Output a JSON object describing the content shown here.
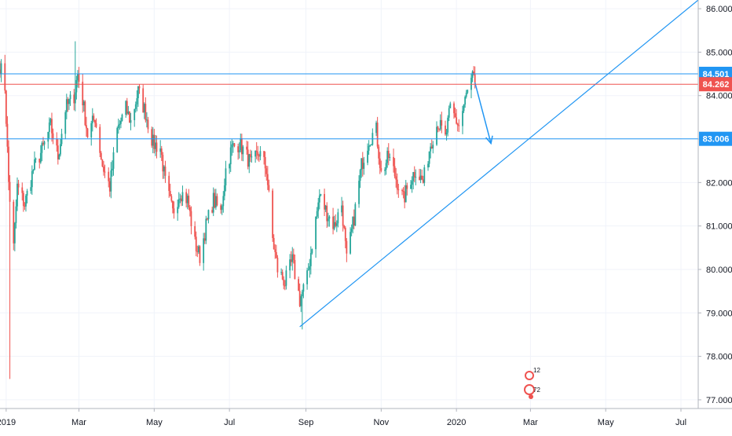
{
  "chart_data": {
    "type": "candlestick",
    "title": "",
    "xlabel": "",
    "ylabel": "",
    "ylim": [
      76.8,
      86.2
    ],
    "y_ticks": [
      "77.000",
      "78.000",
      "79.000",
      "80.000",
      "81.000",
      "82.000",
      "83.000",
      "84.000",
      "85.000",
      "86.000"
    ],
    "x_ticks": [
      {
        "label": "2019",
        "date": "2019-01-01"
      },
      {
        "label": "Mar",
        "date": "2019-03-01"
      },
      {
        "label": "May",
        "date": "2019-05-01"
      },
      {
        "label": "Jul",
        "date": "2019-07-01"
      },
      {
        "label": "Sep",
        "date": "2019-09-01"
      },
      {
        "label": "Nov",
        "date": "2019-11-01"
      },
      {
        "label": "2020",
        "date": "2020-01-01"
      },
      {
        "label": "Mar",
        "date": "2020-03-01"
      },
      {
        "label": "May",
        "date": "2020-05-01"
      },
      {
        "label": "Jul",
        "date": "2020-07-01"
      }
    ],
    "xlim": [
      "2018-12-27",
      "2020-07-15"
    ],
    "close_path": [
      [
        "2018-12-27",
        84.7
      ],
      [
        "2018-12-31",
        84.2
      ],
      [
        "2019-01-03",
        82.0
      ],
      [
        "2019-01-07",
        80.5
      ],
      [
        "2019-01-10",
        81.9
      ],
      [
        "2019-01-16",
        81.5
      ],
      [
        "2019-01-23",
        82.3
      ],
      [
        "2019-01-31",
        82.8
      ],
      [
        "2019-02-06",
        83.3
      ],
      [
        "2019-02-12",
        82.6
      ],
      [
        "2019-02-18",
        83.7
      ],
      [
        "2019-02-25",
        84.0
      ],
      [
        "2019-02-28",
        84.5
      ],
      [
        "2019-03-04",
        83.9
      ],
      [
        "2019-03-08",
        83.1
      ],
      [
        "2019-03-14",
        83.5
      ],
      [
        "2019-03-20",
        82.4
      ],
      [
        "2019-03-26",
        81.9
      ],
      [
        "2019-04-01",
        83.2
      ],
      [
        "2019-04-08",
        83.7
      ],
      [
        "2019-04-12",
        83.4
      ],
      [
        "2019-04-18",
        84.1
      ],
      [
        "2019-04-24",
        83.6
      ],
      [
        "2019-04-30",
        82.9
      ],
      [
        "2019-05-06",
        82.8
      ],
      [
        "2019-05-10",
        82.0
      ],
      [
        "2019-05-16",
        81.3
      ],
      [
        "2019-05-22",
        81.8
      ],
      [
        "2019-05-28",
        81.6
      ],
      [
        "2019-06-03",
        80.6
      ],
      [
        "2019-06-07",
        80.3
      ],
      [
        "2019-06-12",
        81.0
      ],
      [
        "2019-06-18",
        81.6
      ],
      [
        "2019-06-24",
        81.3
      ],
      [
        "2019-06-28",
        82.3
      ],
      [
        "2019-07-03",
        82.8
      ],
      [
        "2019-07-09",
        82.9
      ],
      [
        "2019-07-15",
        82.6
      ],
      [
        "2019-07-19",
        82.4
      ],
      [
        "2019-07-25",
        82.7
      ],
      [
        "2019-07-31",
        82.3
      ],
      [
        "2019-08-05",
        80.7
      ],
      [
        "2019-08-09",
        80.0
      ],
      [
        "2019-08-15",
        79.7
      ],
      [
        "2019-08-21",
        80.2
      ],
      [
        "2019-08-27",
        79.3
      ],
      [
        "2019-09-02",
        79.8
      ],
      [
        "2019-09-06",
        80.6
      ],
      [
        "2019-09-12",
        81.7
      ],
      [
        "2019-09-18",
        81.3
      ],
      [
        "2019-09-24",
        81.0
      ],
      [
        "2019-09-30",
        81.5
      ],
      [
        "2019-10-04",
        80.2
      ],
      [
        "2019-10-10",
        81.2
      ],
      [
        "2019-10-16",
        82.4
      ],
      [
        "2019-10-22",
        83.0
      ],
      [
        "2019-10-28",
        83.2
      ],
      [
        "2019-11-01",
        82.2
      ],
      [
        "2019-11-07",
        82.6
      ],
      [
        "2019-11-13",
        82.1
      ],
      [
        "2019-11-19",
        81.6
      ],
      [
        "2019-11-25",
        82.1
      ],
      [
        "2019-11-29",
        82.3
      ],
      [
        "2019-12-05",
        82.0
      ],
      [
        "2019-12-11",
        82.9
      ],
      [
        "2019-12-17",
        83.4
      ],
      [
        "2019-12-23",
        83.0
      ],
      [
        "2019-12-27",
        83.7
      ],
      [
        "2020-01-03",
        83.3
      ],
      [
        "2020-01-09",
        84.0
      ],
      [
        "2020-01-14",
        84.4
      ],
      [
        "2020-01-16",
        84.3
      ]
    ],
    "horizontal_levels": [
      {
        "value": 84.501,
        "label": "84.501",
        "color": "#2196f3"
      },
      {
        "value": 83.006,
        "label": "83.006",
        "color": "#2196f3"
      },
      {
        "value": 84.262,
        "label": "84.262",
        "color": "#ef5350"
      }
    ],
    "trendline": {
      "from": [
        "2019-08-27",
        78.68
      ],
      "to": [
        "2020-07-15",
        86.2
      ],
      "color": "#2196f3"
    },
    "arrow": {
      "from": [
        "2020-01-16",
        84.3
      ],
      "to": [
        "2020-01-29",
        82.9
      ],
      "color": "#2196f3"
    },
    "colors": {
      "up": "#26a69a",
      "down": "#ef5350",
      "grid": "#f0f3fa",
      "axis_text": "#131722"
    }
  },
  "watermark": {
    "top_digits": "12",
    "bottom_digits": "72"
  }
}
